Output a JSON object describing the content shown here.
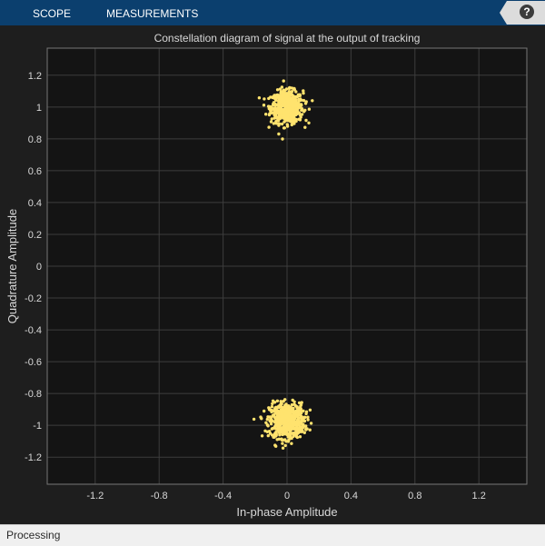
{
  "toolstrip": {
    "tabs": [
      {
        "label": "SCOPE"
      },
      {
        "label": "MEASUREMENTS"
      }
    ],
    "help_label": "?"
  },
  "status": {
    "text": "Processing"
  },
  "colors": {
    "background": "#1e1e1e",
    "plot_background": "#141414",
    "grid": "#3d3d3d",
    "axis_text": "#d8d8d8",
    "points": "#ffe36e",
    "toolstrip": "#0b3f6e"
  },
  "chart_data": {
    "type": "scatter",
    "title": "Constellation diagram of signal at the output of tracking",
    "xlabel": "In-phase Amplitude",
    "ylabel": "Quadrature Amplitude",
    "xlim": [
      -1.5,
      1.5
    ],
    "ylim": [
      -1.37,
      1.37
    ],
    "xticks": [
      -1.2,
      -0.8,
      -0.4,
      0,
      0.4,
      0.8,
      1.2
    ],
    "yticks": [
      -1.2,
      -1,
      -0.8,
      -0.6,
      -0.4,
      -0.2,
      0,
      0.2,
      0.4,
      0.6,
      0.8,
      1,
      1.2
    ],
    "grid": true,
    "clusters": [
      {
        "center": [
          0.0,
          1.0
        ],
        "spread": 0.05,
        "count": 600
      },
      {
        "center": [
          0.0,
          -0.97
        ],
        "spread": 0.055,
        "count": 600
      }
    ]
  }
}
